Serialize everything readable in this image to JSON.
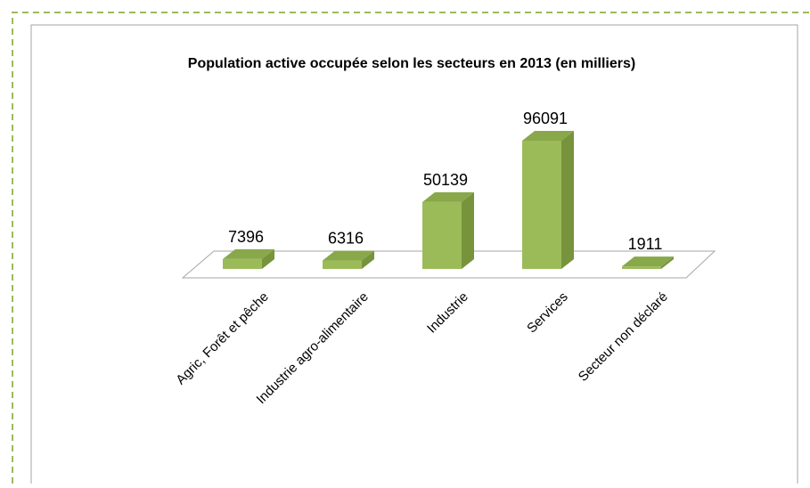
{
  "chart_data": {
    "type": "bar3d",
    "title": "Population active occupée selon les secteurs en 2013 (en milliers)",
    "categories": [
      "Agric, Forêt et pêche",
      "Industrie agro-alimentaire",
      "Industrie",
      "Services",
      "Secteur non déclaré"
    ],
    "values": [
      7396,
      6316,
      50139,
      96091,
      1911
    ],
    "color": "#9bbb59"
  }
}
